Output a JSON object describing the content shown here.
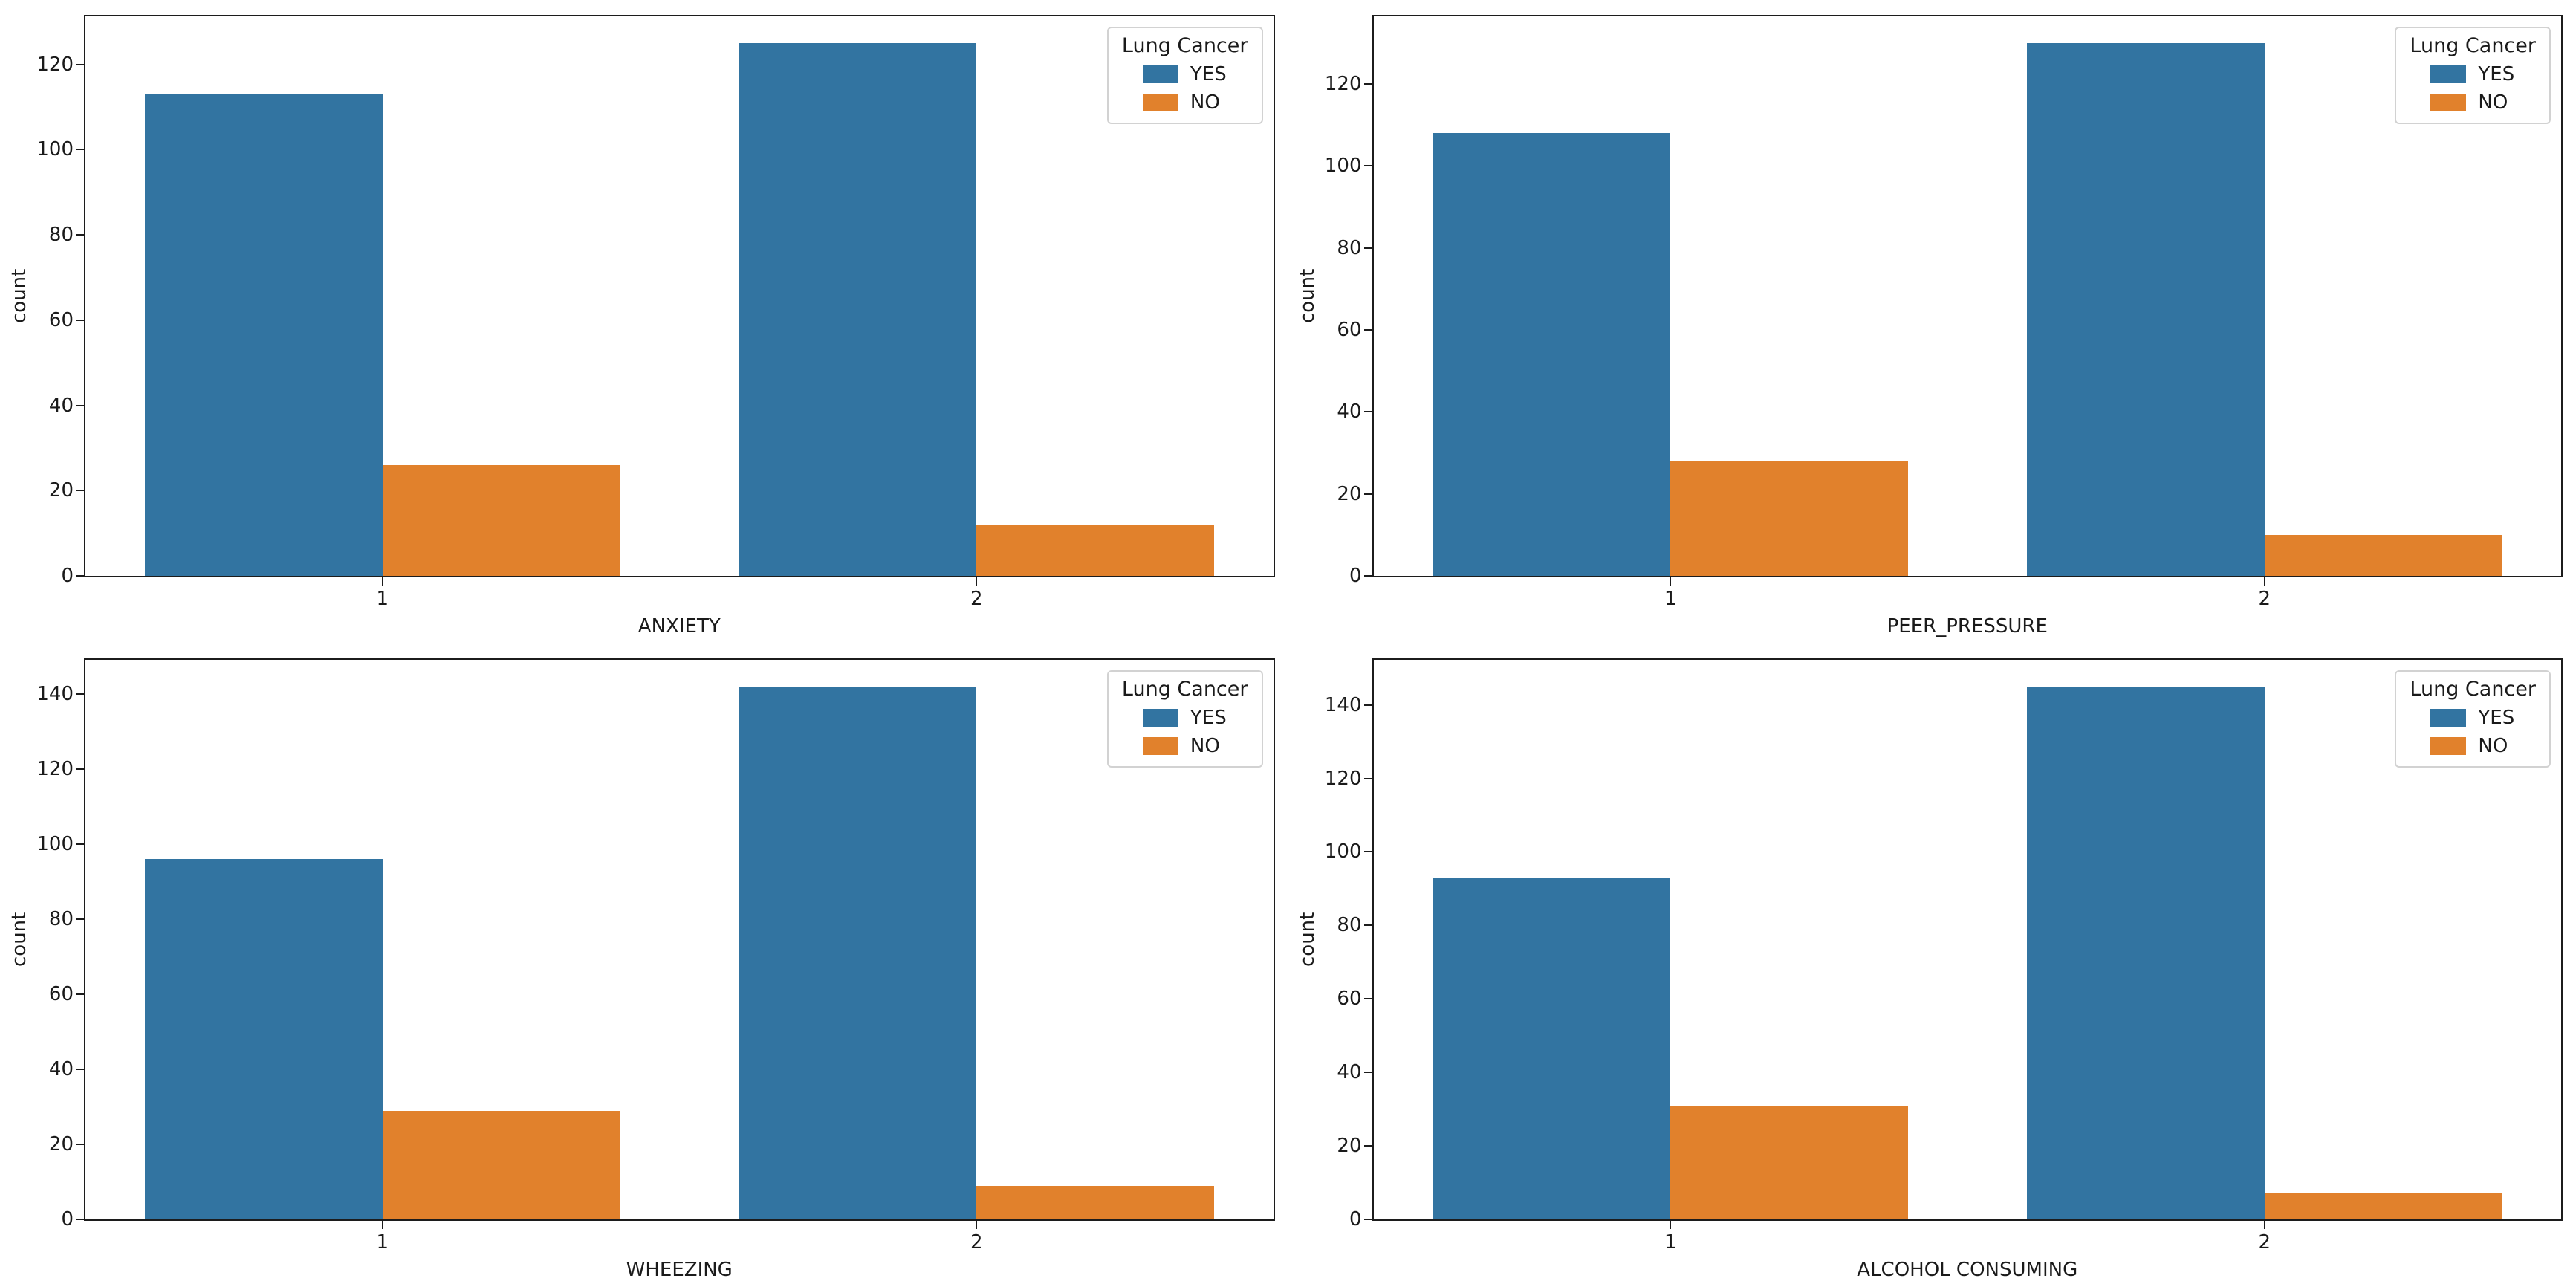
{
  "figure": {
    "background": "#ffffff"
  },
  "legend": {
    "title": "Lung Cancer",
    "entries": [
      {
        "label": "YES",
        "color": "#3274a1"
      },
      {
        "label": "NO",
        "color": "#e1812c"
      }
    ],
    "position": "upper right"
  },
  "chart_data": [
    {
      "type": "bar",
      "title": "",
      "xlabel": "ANXIETY",
      "ylabel": "count",
      "categories": [
        "1",
        "2"
      ],
      "series": [
        {
          "name": "YES",
          "color": "#3274a1",
          "values": [
            113,
            125
          ]
        },
        {
          "name": "NO",
          "color": "#e1812c",
          "values": [
            26,
            12
          ]
        }
      ],
      "yticks": [
        0,
        20,
        40,
        60,
        80,
        100,
        120
      ],
      "ylim": [
        0,
        131.25
      ],
      "grid": false,
      "legend_position": "upper right"
    },
    {
      "type": "bar",
      "title": "",
      "xlabel": "PEER_PRESSURE",
      "ylabel": "count",
      "categories": [
        "1",
        "2"
      ],
      "series": [
        {
          "name": "YES",
          "color": "#3274a1",
          "values": [
            108,
            130
          ]
        },
        {
          "name": "NO",
          "color": "#e1812c",
          "values": [
            28,
            10
          ]
        }
      ],
      "yticks": [
        0,
        20,
        40,
        60,
        80,
        100,
        120
      ],
      "ylim": [
        0,
        136.5
      ],
      "grid": false,
      "legend_position": "upper right"
    },
    {
      "type": "bar",
      "title": "",
      "xlabel": "WHEEZING",
      "ylabel": "count",
      "categories": [
        "1",
        "2"
      ],
      "series": [
        {
          "name": "YES",
          "color": "#3274a1",
          "values": [
            96,
            142
          ]
        },
        {
          "name": "NO",
          "color": "#e1812c",
          "values": [
            29,
            9
          ]
        }
      ],
      "yticks": [
        0,
        20,
        40,
        60,
        80,
        100,
        120,
        140
      ],
      "ylim": [
        0,
        149.1
      ],
      "grid": false,
      "legend_position": "upper right"
    },
    {
      "type": "bar",
      "title": "",
      "xlabel": "ALCOHOL CONSUMING",
      "ylabel": "count",
      "categories": [
        "1",
        "2"
      ],
      "series": [
        {
          "name": "YES",
          "color": "#3274a1",
          "values": [
            93,
            145
          ]
        },
        {
          "name": "NO",
          "color": "#e1812c",
          "values": [
            31,
            7
          ]
        }
      ],
      "yticks": [
        0,
        20,
        40,
        60,
        80,
        100,
        120,
        140
      ],
      "ylim": [
        0,
        152.25
      ],
      "grid": false,
      "legend_position": "upper right"
    }
  ]
}
